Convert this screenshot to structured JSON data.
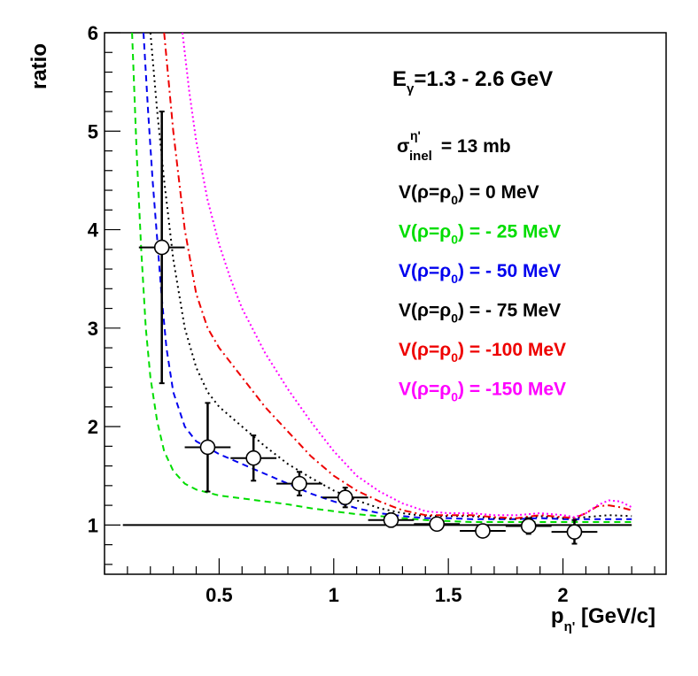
{
  "chart_data": {
    "type": "line",
    "xlabel": {
      "main": "p",
      "sub": "η'",
      "rest": " [GeV/c]"
    },
    "ylabel": "ratio",
    "xlim": [
      0.0,
      2.45
    ],
    "ylim": [
      0.5,
      6.0
    ],
    "x_ticks": [
      {
        "v": 0.5,
        "label": "0.5"
      },
      {
        "v": 1.0,
        "label": "1"
      },
      {
        "v": 1.5,
        "label": "1.5"
      },
      {
        "v": 2.0,
        "label": "2"
      }
    ],
    "y_ticks": [
      {
        "v": 1,
        "label": "1"
      },
      {
        "v": 2,
        "label": "2"
      },
      {
        "v": 3,
        "label": "3"
      },
      {
        "v": 4,
        "label": "4"
      },
      {
        "v": 5,
        "label": "5"
      },
      {
        "v": 6,
        "label": "6"
      }
    ],
    "x_minor_step": 0.1,
    "y_minor_step": 0.2,
    "reference_line": {
      "y": 1.0,
      "x_start": 0.08,
      "x_end": 2.3,
      "color": "#000000"
    },
    "annotations": {
      "energy": {
        "main": "E",
        "sub": "γ",
        "rest": "=1.3 - 2.6 GeV"
      },
      "sigma": {
        "main": "σ",
        "sup": "η'",
        "sub": "inel",
        "rest": " = 13 mb"
      }
    },
    "series": [
      {
        "color": "#00dd00",
        "dash": "7,5",
        "legend": {
          "pre": "V(ρ=ρ",
          "sub": "0",
          "post": ") = - 25 MeV"
        },
        "x": [
          0.12,
          0.14,
          0.16,
          0.18,
          0.2,
          0.23,
          0.26,
          0.3,
          0.35,
          0.4,
          0.5,
          0.6,
          0.7,
          0.8,
          0.9,
          1.0,
          1.1,
          1.2,
          1.3,
          1.4,
          1.5,
          1.6,
          1.7,
          1.8,
          1.9,
          2.0,
          2.1,
          2.2,
          2.3
        ],
        "y": [
          6.0,
          4.8,
          3.8,
          3.0,
          2.5,
          2.05,
          1.75,
          1.55,
          1.42,
          1.36,
          1.3,
          1.27,
          1.24,
          1.21,
          1.17,
          1.14,
          1.11,
          1.09,
          1.07,
          1.05,
          1.04,
          1.03,
          1.03,
          1.03,
          1.03,
          1.03,
          1.03,
          1.03,
          1.03
        ]
      },
      {
        "color": "#0000ee",
        "dash": "7,5",
        "legend": {
          "pre": "V(ρ=ρ",
          "sub": "0",
          "post": ") = - 50 MeV"
        },
        "x": [
          0.17,
          0.19,
          0.21,
          0.23,
          0.25,
          0.27,
          0.3,
          0.35,
          0.4,
          0.5,
          0.6,
          0.7,
          0.8,
          0.9,
          1.0,
          1.1,
          1.2,
          1.3,
          1.4,
          1.5,
          1.6,
          1.7,
          1.8,
          1.9,
          2.0,
          2.1,
          2.2,
          2.3
        ],
        "y": [
          6.0,
          5.2,
          4.5,
          3.9,
          3.3,
          2.8,
          2.35,
          2.0,
          1.85,
          1.72,
          1.62,
          1.52,
          1.42,
          1.32,
          1.24,
          1.17,
          1.12,
          1.09,
          1.07,
          1.07,
          1.06,
          1.06,
          1.06,
          1.07,
          1.06,
          1.06,
          1.06,
          1.06
        ]
      },
      {
        "color": "#000000",
        "dash": "2,4",
        "legend": {
          "pre": "V(ρ=ρ",
          "sub": "0",
          "post": ") = - 75 MeV"
        },
        "x": [
          0.2,
          0.23,
          0.26,
          0.3,
          0.35,
          0.4,
          0.45,
          0.5,
          0.6,
          0.7,
          0.8,
          0.9,
          1.0,
          1.1,
          1.2,
          1.3,
          1.4,
          1.5,
          1.6,
          1.7,
          1.8,
          1.9,
          2.0,
          2.1,
          2.2,
          2.3
        ],
        "y": [
          6.0,
          5.2,
          4.5,
          3.7,
          3.0,
          2.6,
          2.35,
          2.2,
          2.0,
          1.8,
          1.62,
          1.48,
          1.35,
          1.25,
          1.17,
          1.12,
          1.09,
          1.09,
          1.09,
          1.07,
          1.06,
          1.09,
          1.07,
          1.08,
          1.1,
          1.09
        ]
      },
      {
        "color": "#ee0000",
        "dash": "8,4,2,4",
        "legend": {
          "pre": "V(ρ=ρ",
          "sub": "0",
          "post": ") = -100 MeV"
        },
        "x": [
          0.26,
          0.3,
          0.35,
          0.4,
          0.45,
          0.5,
          0.6,
          0.7,
          0.8,
          0.9,
          1.0,
          1.1,
          1.2,
          1.3,
          1.4,
          1.5,
          1.6,
          1.7,
          1.8,
          1.9,
          2.0,
          2.05,
          2.1,
          2.15,
          2.2,
          2.25,
          2.3
        ],
        "y": [
          6.0,
          5.0,
          4.0,
          3.35,
          3.0,
          2.8,
          2.5,
          2.2,
          1.95,
          1.7,
          1.5,
          1.35,
          1.24,
          1.15,
          1.1,
          1.1,
          1.1,
          1.08,
          1.07,
          1.1,
          1.08,
          1.07,
          1.12,
          1.19,
          1.2,
          1.18,
          1.15
        ]
      },
      {
        "color": "#ff00ff",
        "dash": "2,3",
        "legend": {
          "pre": "V(ρ=ρ",
          "sub": "0",
          "post": ") = -150 MeV"
        },
        "x": [
          0.34,
          0.37,
          0.4,
          0.45,
          0.5,
          0.55,
          0.6,
          0.7,
          0.8,
          0.9,
          1.0,
          1.1,
          1.2,
          1.3,
          1.4,
          1.5,
          1.6,
          1.7,
          1.8,
          1.9,
          2.0,
          2.05,
          2.1,
          2.15,
          2.2,
          2.25,
          2.3
        ],
        "y": [
          6.0,
          5.4,
          4.9,
          4.3,
          3.85,
          3.5,
          3.2,
          2.75,
          2.38,
          2.05,
          1.75,
          1.5,
          1.34,
          1.22,
          1.14,
          1.12,
          1.12,
          1.1,
          1.1,
          1.12,
          1.1,
          1.08,
          1.12,
          1.2,
          1.25,
          1.24,
          1.18
        ]
      }
    ],
    "legend_extra": {
      "pre": "V(ρ=ρ",
      "sub": "0",
      "post": ") =    0 MeV",
      "color": "#000000"
    },
    "data_points": [
      {
        "x": 0.25,
        "y": 3.82,
        "xerr": 0.1,
        "yerr": 1.38
      },
      {
        "x": 0.45,
        "y": 1.79,
        "xerr": 0.1,
        "yerr": 0.45
      },
      {
        "x": 0.65,
        "y": 1.68,
        "xerr": 0.1,
        "yerr": 0.23
      },
      {
        "x": 0.85,
        "y": 1.42,
        "xerr": 0.1,
        "yerr": 0.12
      },
      {
        "x": 1.05,
        "y": 1.28,
        "xerr": 0.1,
        "yerr": 0.1
      },
      {
        "x": 1.25,
        "y": 1.05,
        "xerr": 0.1,
        "yerr": 0.07
      },
      {
        "x": 1.45,
        "y": 1.01,
        "xerr": 0.1,
        "yerr": 0.06
      },
      {
        "x": 1.65,
        "y": 0.94,
        "xerr": 0.1,
        "yerr": 0.06
      },
      {
        "x": 1.85,
        "y": 0.99,
        "xerr": 0.1,
        "yerr": 0.08
      },
      {
        "x": 2.05,
        "y": 0.93,
        "xerr": 0.1,
        "yerr": 0.12
      }
    ]
  }
}
